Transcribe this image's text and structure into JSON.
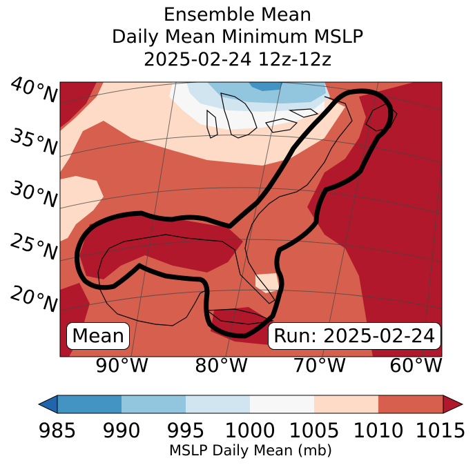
{
  "title": {
    "line1": "Ensemble Mean",
    "line2": "Daily Mean Minimum MSLP",
    "line3": "2025-02-24 12z-12z"
  },
  "map": {
    "lat_labels": [
      "40°N",
      "35°N",
      "30°N",
      "25°N",
      "20°N"
    ],
    "lon_labels": [
      "90°W",
      "80°W",
      "70°W",
      "60°W"
    ],
    "left_box": "Mean",
    "right_box": "Run: 2025-02-24"
  },
  "colorbar": {
    "label": "MSLP Daily Mean (mb)",
    "ticks": [
      "985",
      "990",
      "995",
      "1000",
      "1005",
      "1010",
      "1015"
    ],
    "colors": [
      "#2166ac",
      "#4393c3",
      "#92c5de",
      "#d1e5f0",
      "#f7f7f7",
      "#fddbc7",
      "#d6604d",
      "#b2182b"
    ]
  },
  "colors": {
    "bin_1000_1005": "#f7f7f7",
    "bin_1005_1010": "#fddbc7",
    "bin_1010_1015": "#d6604d",
    "bin_over_1015": "#b2182b",
    "bin_995_1000": "#d1e5f0",
    "bin_990_995": "#92c5de",
    "bin_985_990": "#4393c3"
  }
}
